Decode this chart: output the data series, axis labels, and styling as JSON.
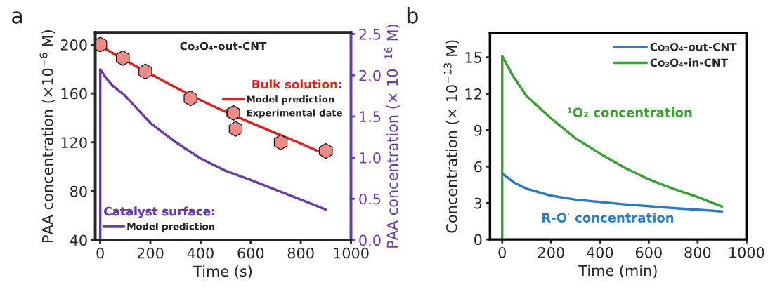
{
  "chart_data": [
    {
      "type": "line",
      "title": "a",
      "subtitle": "Co₃O₄-out-CNT",
      "xlabel": "Time (s)",
      "ylabel": "PAA concentration (×10$^{−6}$ M)",
      "y2label": "PAA concentration (× 10$^{−16}$ M)",
      "xlim": [
        -20,
        1000
      ],
      "xticks": [
        0,
        200,
        400,
        600,
        800,
        1000
      ],
      "ylim": [
        40,
        210
      ],
      "yticks": [
        40,
        80,
        120,
        160,
        200
      ],
      "y2lim": [
        0,
        2.52
      ],
      "y2ticks": [
        {
          "value": 0,
          "label": "0.0"
        },
        0.5,
        {
          "value": 1,
          "label": "1.0"
        },
        1.5,
        {
          "value": 2,
          "label": "2.0"
        },
        2.5
      ],
      "annotations": [
        "Bulk solution:",
        "Catalyst surface:"
      ],
      "legend": "right",
      "grid": false,
      "series": [
        {
          "name": "Model prediction",
          "type": "line",
          "color": "#e0201b",
          "x": [
            0,
            100,
            200,
            300,
            400,
            500,
            600,
            700,
            800,
            900
          ],
          "values": [
            199,
            187,
            176,
            165,
            154.5,
            145,
            136,
            127.5,
            119,
            110
          ]
        },
        {
          "name": "Experimental date",
          "type": "scatter",
          "color": "#f08a86",
          "x": [
            0,
            90,
            180,
            360,
            540,
            720,
            900
          ],
          "values": [
            200,
            189,
            178,
            156,
            131,
            120,
            113
          ]
        },
        {
          "name": "Model prediction",
          "type": "line",
          "axis": "y2",
          "color": "#6a3fa0",
          "x": [
            0,
            0,
            25,
            50,
            100,
            200,
            300,
            400,
            500,
            600,
            700,
            800,
            900
          ],
          "values": [
            0,
            2.07,
            1.96,
            1.87,
            1.75,
            1.42,
            1.19,
            0.99,
            0.84,
            0.73,
            0.61,
            0.49,
            0.37
          ]
        }
      ]
    },
    {
      "type": "line",
      "title": "b",
      "xlabel": "Time (min)",
      "ylabel": "Concentration (× 10$^{−13}$ M)",
      "xlim": [
        -50,
        1000
      ],
      "xticks": [
        0,
        200,
        400,
        600,
        800,
        1000
      ],
      "ylim": [
        0,
        17
      ],
      "yticks": [
        0,
        3,
        6,
        9,
        12,
        15
      ],
      "legend": "top right",
      "grid": false,
      "annotations": [
        "R-O$^{·}$ concentration",
        "¹O₂ concentration"
      ],
      "series": [
        {
          "name": "Co₃O₄-out-CNT",
          "color": "#2f7bbf",
          "x": [
            2,
            50,
            100,
            200,
            300,
            400,
            500,
            600,
            700,
            800,
            900
          ],
          "values": [
            5.4,
            4.67,
            4.18,
            3.6,
            3.28,
            3.08,
            2.89,
            2.74,
            2.58,
            2.45,
            2.3
          ]
        },
        {
          "name": "Co₃O₄-in-CNT",
          "color": "#3a9f36",
          "x": [
            0,
            0,
            43,
            100,
            200,
            300,
            400,
            500,
            600,
            700,
            800,
            900
          ],
          "values": [
            0,
            15.1,
            13.5,
            11.8,
            9.97,
            8.33,
            7.08,
            5.92,
            4.95,
            4.18,
            3.5,
            2.7
          ]
        }
      ]
    }
  ]
}
